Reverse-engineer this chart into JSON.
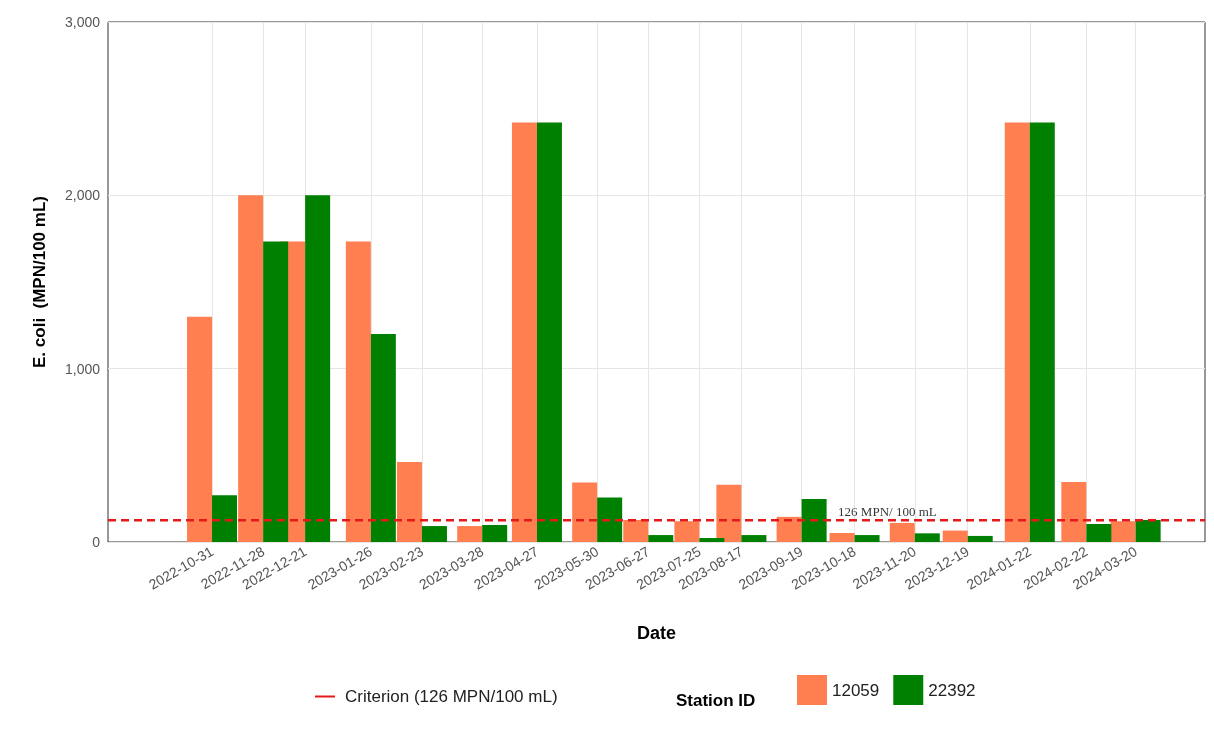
{
  "chart_data": {
    "type": "bar",
    "xlabel": "Date",
    "ylabel": "E. coli  (MPN/100 mL)",
    "legend_title": "Station ID",
    "legend": "bottom",
    "grid": true,
    "x": [
      "2022-10-31",
      "2022-11-28",
      "2022-12-21",
      "2023-01-26",
      "2023-02-23",
      "2023-03-28",
      "2023-04-27",
      "2023-05-30",
      "2023-06-27",
      "2023-07-25",
      "2023-08-17",
      "2023-09-19",
      "2023-10-18",
      "2023-11-20",
      "2023-12-19",
      "2024-01-22",
      "2024-02-22",
      "2024-03-20"
    ],
    "xlim": [
      "2022-09-04",
      "2024-04-27"
    ],
    "xticks": [
      "2022-10-31",
      "2022-11-28",
      "2022-12-21",
      "2023-01-26",
      "2023-02-23",
      "2023-03-28",
      "2023-04-27",
      "2023-05-30",
      "2023-06-27",
      "2023-07-25",
      "2023-08-17",
      "2023-09-19",
      "2023-10-18",
      "2023-11-20",
      "2023-12-19",
      "2024-01-22",
      "2024-02-22",
      "2024-03-20"
    ],
    "ylim": [
      0,
      3000
    ],
    "yticks": [
      0,
      {
        "value": 1000,
        "label": "1,000"
      },
      {
        "value": 2000,
        "label": "2,000"
      },
      {
        "value": 3000,
        "label": "3,000"
      }
    ],
    "series": [
      {
        "name": "Criterion (126 MPN/100 mL)",
        "type": "line",
        "line_style": "dashed",
        "marker": "none",
        "color": "#e31a1c",
        "x": [
          "2022-09-04",
          "2024-04-27"
        ],
        "values": [
          126,
          126
        ]
      },
      {
        "name": "12059",
        "color": "#ff7f50",
        "values": [
          1300,
          2000,
          1733,
          1733,
          461,
          92,
          2420,
          343,
          127,
          120,
          330,
          145,
          52,
          110,
          66,
          2420,
          346,
          120
        ]
      },
      {
        "name": "22392",
        "color": "#008000",
        "values": [
          270,
          1733,
          2000,
          1200,
          92,
          98,
          2420,
          257,
          40,
          23,
          40,
          248,
          40,
          50,
          35,
          2420,
          104,
          127
        ]
      }
    ],
    "annotations": [
      {
        "text": "126 MPN/ 100 mL",
        "x": "2023-11-05",
        "y": 126
      }
    ]
  }
}
